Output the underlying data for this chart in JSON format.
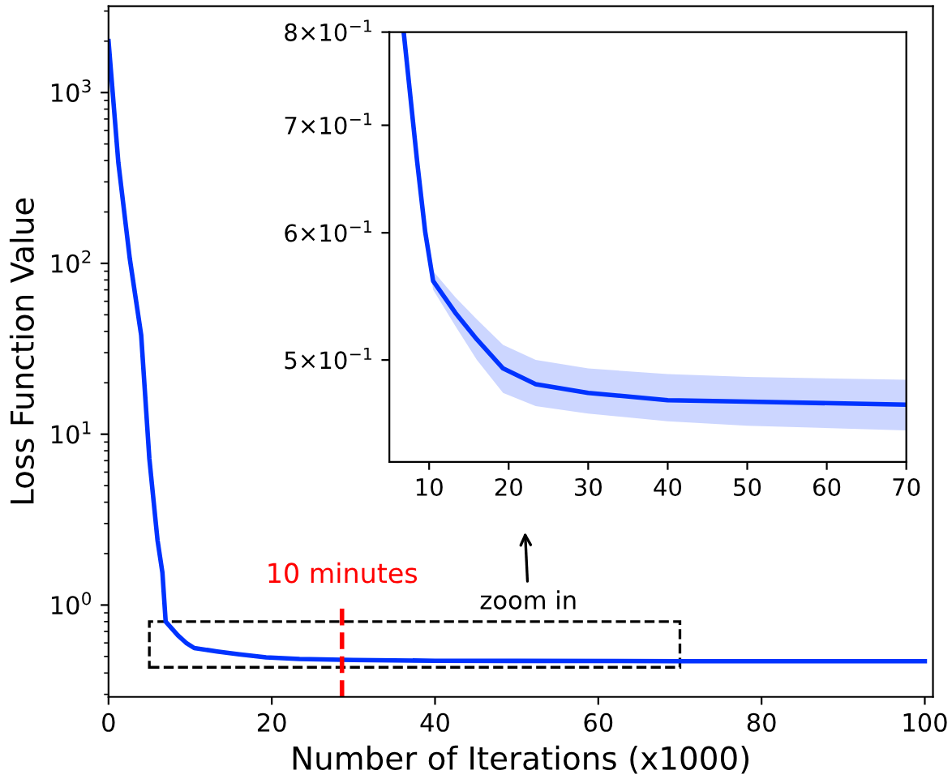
{
  "chart_data": [
    {
      "type": "line",
      "xlabel": "Number of Iterations (x1000)",
      "ylabel": "Loss Function Value",
      "log": "y",
      "grid": false,
      "xlim": [
        0,
        101
      ],
      "ylim": [
        0.29,
        3200
      ],
      "xticks": [
        0,
        20,
        40,
        60,
        80,
        100
      ],
      "yticks": [
        {
          "value": 1,
          "label": "10$^{0}$"
        },
        {
          "value": 10,
          "label": "10$^{1}$"
        },
        {
          "value": 100,
          "label": "10$^{2}$"
        },
        {
          "value": 1000,
          "label": "10$^{3}$"
        }
      ],
      "ref_lines": [
        {
          "axis": "x",
          "value": 28.6,
          "label": "10 minutes",
          "color": "#ff0000",
          "line_style": "dashed"
        }
      ],
      "annotations": [
        "zoom in"
      ],
      "series": [
        {
          "color": "#0033ff",
          "x": [
            0,
            1.2,
            2.6,
            4,
            5,
            6,
            6.6,
            7,
            8.5,
            9.5,
            10.5,
            13.3,
            16,
            19.3,
            23.4,
            30,
            40,
            50,
            70,
            100
          ],
          "values": [
            2000,
            390,
            107,
            38,
            7.2,
            2.4,
            1.55,
            0.8,
            0.664,
            0.601,
            0.56,
            0.535,
            0.515,
            0.494,
            0.483,
            0.477,
            0.472,
            0.471,
            0.469,
            0.469
          ]
        }
      ]
    },
    {
      "type": "line",
      "log": "y",
      "grid": false,
      "xlim": [
        5,
        70
      ],
      "ylim": [
        0.432,
        0.8
      ],
      "xticks": [
        10,
        20,
        30,
        40,
        50,
        60,
        70
      ],
      "yticks": [
        {
          "value": 0.5,
          "label": "5×10$^{−1}$"
        },
        {
          "value": 0.6,
          "label": "6×10$^{−1}$"
        },
        {
          "value": 0.7,
          "label": "7×10$^{−1}$"
        },
        {
          "value": 0.8,
          "label": "8×10$^{−1}$"
        }
      ],
      "series": [
        {
          "color": "#0033ff",
          "x": [
            6.8,
            8.5,
            9.5,
            10.5,
            13.3,
            16,
            19.3,
            23.4,
            30,
            40,
            50,
            70
          ],
          "values": [
            0.8,
            0.664,
            0.601,
            0.56,
            0.535,
            0.515,
            0.494,
            0.483,
            0.477,
            0.472,
            0.471,
            0.469
          ],
          "lower": [
            0.8,
            0.664,
            0.598,
            0.553,
            0.525,
            0.5,
            0.477,
            0.468,
            0.463,
            0.458,
            0.455,
            0.452
          ],
          "upper": [
            0.8,
            0.664,
            0.605,
            0.568,
            0.547,
            0.53,
            0.511,
            0.5,
            0.494,
            0.49,
            0.488,
            0.486
          ]
        }
      ]
    }
  ]
}
